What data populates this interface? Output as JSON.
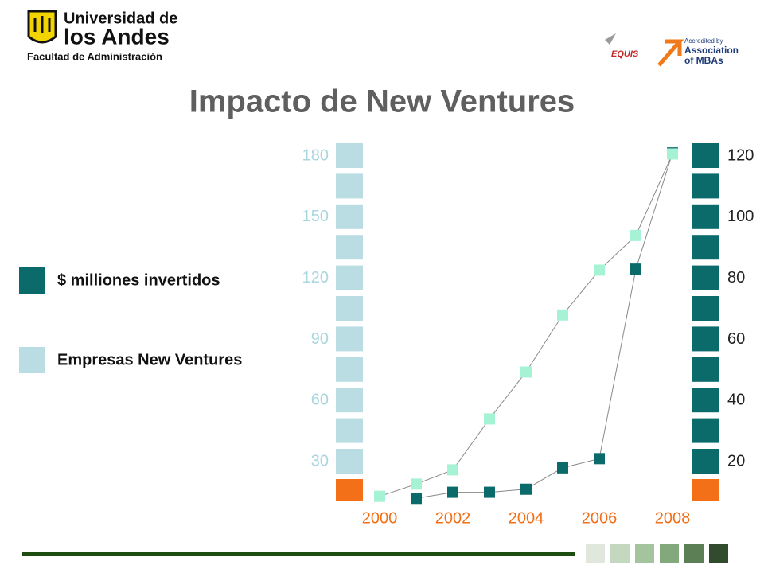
{
  "header": {
    "university_line1": "Universidad de",
    "university_line2": "los Andes",
    "faculty": "Facultad de Administración",
    "equis": "EQUIS",
    "amba_line1": "Accredited by",
    "amba_line2": "Association",
    "amba_line3": "of MBAs"
  },
  "chart_data": {
    "type": "line",
    "title": "Impacto de New Ventures",
    "x": [
      2000,
      2001,
      2002,
      2003,
      2004,
      2005,
      2006,
      2007,
      2008
    ],
    "xlim": [
      2000,
      2008
    ],
    "xticks": [
      2000,
      2002,
      2004,
      2006,
      2008
    ],
    "series": [
      {
        "name": "$ milliones invertidos",
        "color": "#0b6a6a",
        "axis": "y2",
        "values": [
          null,
          8,
          10,
          10,
          11,
          18,
          21,
          83,
          121
        ]
      },
      {
        "name": "Empresas New Ventures",
        "color": "#a6f2d4",
        "values": [
          13,
          19,
          26,
          51,
          74,
          102,
          124,
          141,
          181
        ]
      }
    ],
    "ylim": [
      0,
      180
    ],
    "yticks": [
      30,
      60,
      90,
      120,
      150,
      180
    ],
    "y2lim": [
      0,
      120
    ],
    "y2ticks": [
      20,
      40,
      60,
      80,
      100,
      120
    ],
    "grid": false
  }
}
